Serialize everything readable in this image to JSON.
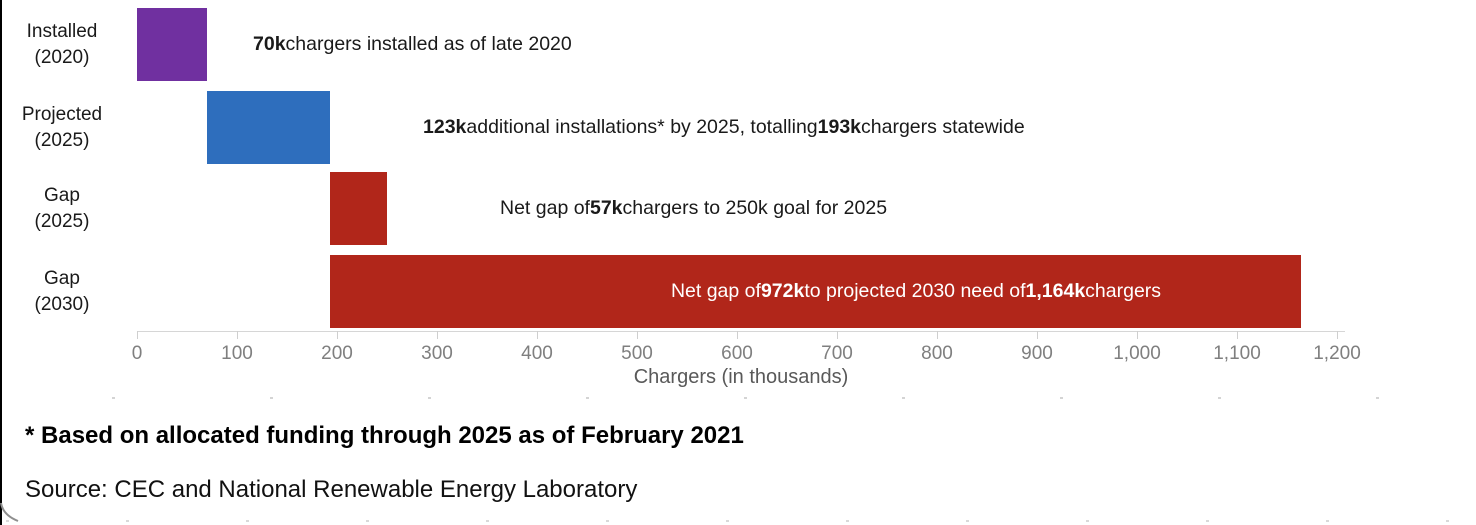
{
  "frame": {
    "background": "#ffffff",
    "left_border_color": "#000000"
  },
  "footnote": "* Based on allocated funding through 2025 as of February 2021",
  "source": "Source: CEC and National Renewable Energy Laboratory",
  "chart_data": {
    "type": "bar",
    "subtype": "horizontal-waterfall",
    "title": "",
    "xlabel": "Chargers (in thousands)",
    "ylabel": "",
    "xlim": [
      0,
      1200
    ],
    "grid": false,
    "legend": "none",
    "x_ticks": [
      0,
      100,
      200,
      300,
      400,
      500,
      600,
      700,
      800,
      900,
      1000,
      1100,
      1200
    ],
    "x_tick_labels": [
      "0",
      "100",
      "200",
      "300",
      "400",
      "500",
      "600",
      "700",
      "800",
      "900",
      "1,000",
      "1,100",
      "1,200"
    ],
    "axis_color": "#d6d6d6",
    "tick_color": "#cfcfcf",
    "tick_label_color": "#7f7f7f",
    "axis_title_color": "#595959",
    "rows": [
      {
        "category_lines": [
          "Installed",
          "(2020)"
        ],
        "start": 0,
        "end": 70,
        "value": 70,
        "color": "#7030a0",
        "annotation_segments": [
          {
            "text": "70k",
            "bold": true
          },
          {
            "text": " chargers installed as of late 2020",
            "bold": false
          }
        ],
        "annotation_placement": "outside",
        "annotation_color": "#1a1a1a",
        "annotation_x": 253,
        "annotation_anchor": "left"
      },
      {
        "category_lines": [
          "Projected",
          "(2025)"
        ],
        "start": 70,
        "end": 193,
        "value": 123,
        "color": "#2e6ebd",
        "annotation_segments": [
          {
            "text": "123k",
            "bold": true
          },
          {
            "text": " additional installations* by 2025, totalling ",
            "bold": false
          },
          {
            "text": "193k",
            "bold": true
          },
          {
            "text": " chargers statewide",
            "bold": false
          }
        ],
        "annotation_placement": "outside",
        "annotation_color": "#1a1a1a",
        "annotation_x": 423,
        "annotation_anchor": "left"
      },
      {
        "category_lines": [
          "Gap",
          "(2025)"
        ],
        "start": 193,
        "end": 250,
        "value": 57,
        "color": "#b1261a",
        "annotation_segments": [
          {
            "text": "Net gap of ",
            "bold": false
          },
          {
            "text": "57k",
            "bold": true
          },
          {
            "text": " chargers to 250k goal for 2025",
            "bold": false
          }
        ],
        "annotation_placement": "outside",
        "annotation_color": "#1a1a1a",
        "annotation_x": 500,
        "annotation_anchor": "left"
      },
      {
        "category_lines": [
          "Gap",
          "(2030)"
        ],
        "start": 193,
        "end": 1164,
        "value": 972,
        "color": "#b1261a",
        "annotation_segments": [
          {
            "text": "Net gap of ",
            "bold": false
          },
          {
            "text": "972k",
            "bold": true
          },
          {
            "text": " to projected 2030 need of ",
            "bold": false
          },
          {
            "text": "1,164k",
            "bold": true
          },
          {
            "text": " chargers",
            "bold": false
          }
        ],
        "annotation_placement": "inside",
        "annotation_color": "#ffffff",
        "annotation_x": 916,
        "annotation_anchor": "center"
      }
    ]
  }
}
